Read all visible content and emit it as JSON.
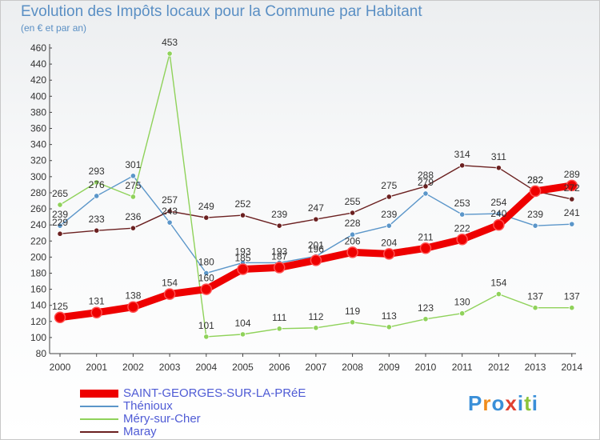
{
  "chart_data": {
    "type": "line",
    "title": "Evolution des Impôts locaux pour la Commune par Habitant",
    "subtitle": "(en € et par an)",
    "x": [
      "2000",
      "2001",
      "2002",
      "2003",
      "2004",
      "2005",
      "2006",
      "2007",
      "2008",
      "2009",
      "2010",
      "2011",
      "2012",
      "2013",
      "2014"
    ],
    "ylim": [
      80,
      460
    ],
    "yticks": [
      80,
      100,
      120,
      140,
      160,
      180,
      200,
      220,
      240,
      260,
      280,
      300,
      320,
      340,
      360,
      380,
      400,
      420,
      440,
      460
    ],
    "grid": false,
    "legend_position": "bottom-left",
    "series": [
      {
        "name": "SAINT-GEORGES-SUR-LA-PRéE",
        "color": "#ee0000",
        "values": [
          125,
          131,
          138,
          154,
          160,
          185,
          187,
          196,
          206,
          204,
          211,
          222,
          240,
          282,
          289
        ]
      },
      {
        "name": "Thénioux",
        "color": "#5b96c9",
        "values": [
          239,
          276,
          301,
          243,
          180,
          193,
          193,
          201,
          228,
          239,
          279,
          253,
          254,
          239,
          241
        ]
      },
      {
        "name": "Méry-sur-Cher",
        "color": "#8fd25a",
        "values": [
          265,
          293,
          275,
          453,
          101,
          104,
          111,
          112,
          119,
          113,
          123,
          130,
          154,
          137,
          137
        ]
      },
      {
        "name": "Maray",
        "color": "#6b2020",
        "values": [
          229,
          233,
          236,
          257,
          249,
          252,
          239,
          247,
          255,
          275,
          288,
          314,
          311,
          282,
          272
        ]
      }
    ]
  },
  "logo": {
    "text": "Proxiti",
    "letters": [
      "P",
      "r",
      "o",
      "x",
      "i",
      "t",
      "i"
    ],
    "colors": [
      "#3a8fd8",
      "#f08c1c",
      "#3a8fd8",
      "#e04030",
      "#3a8fd8",
      "#8cc43a",
      "#3a8fd8"
    ]
  }
}
